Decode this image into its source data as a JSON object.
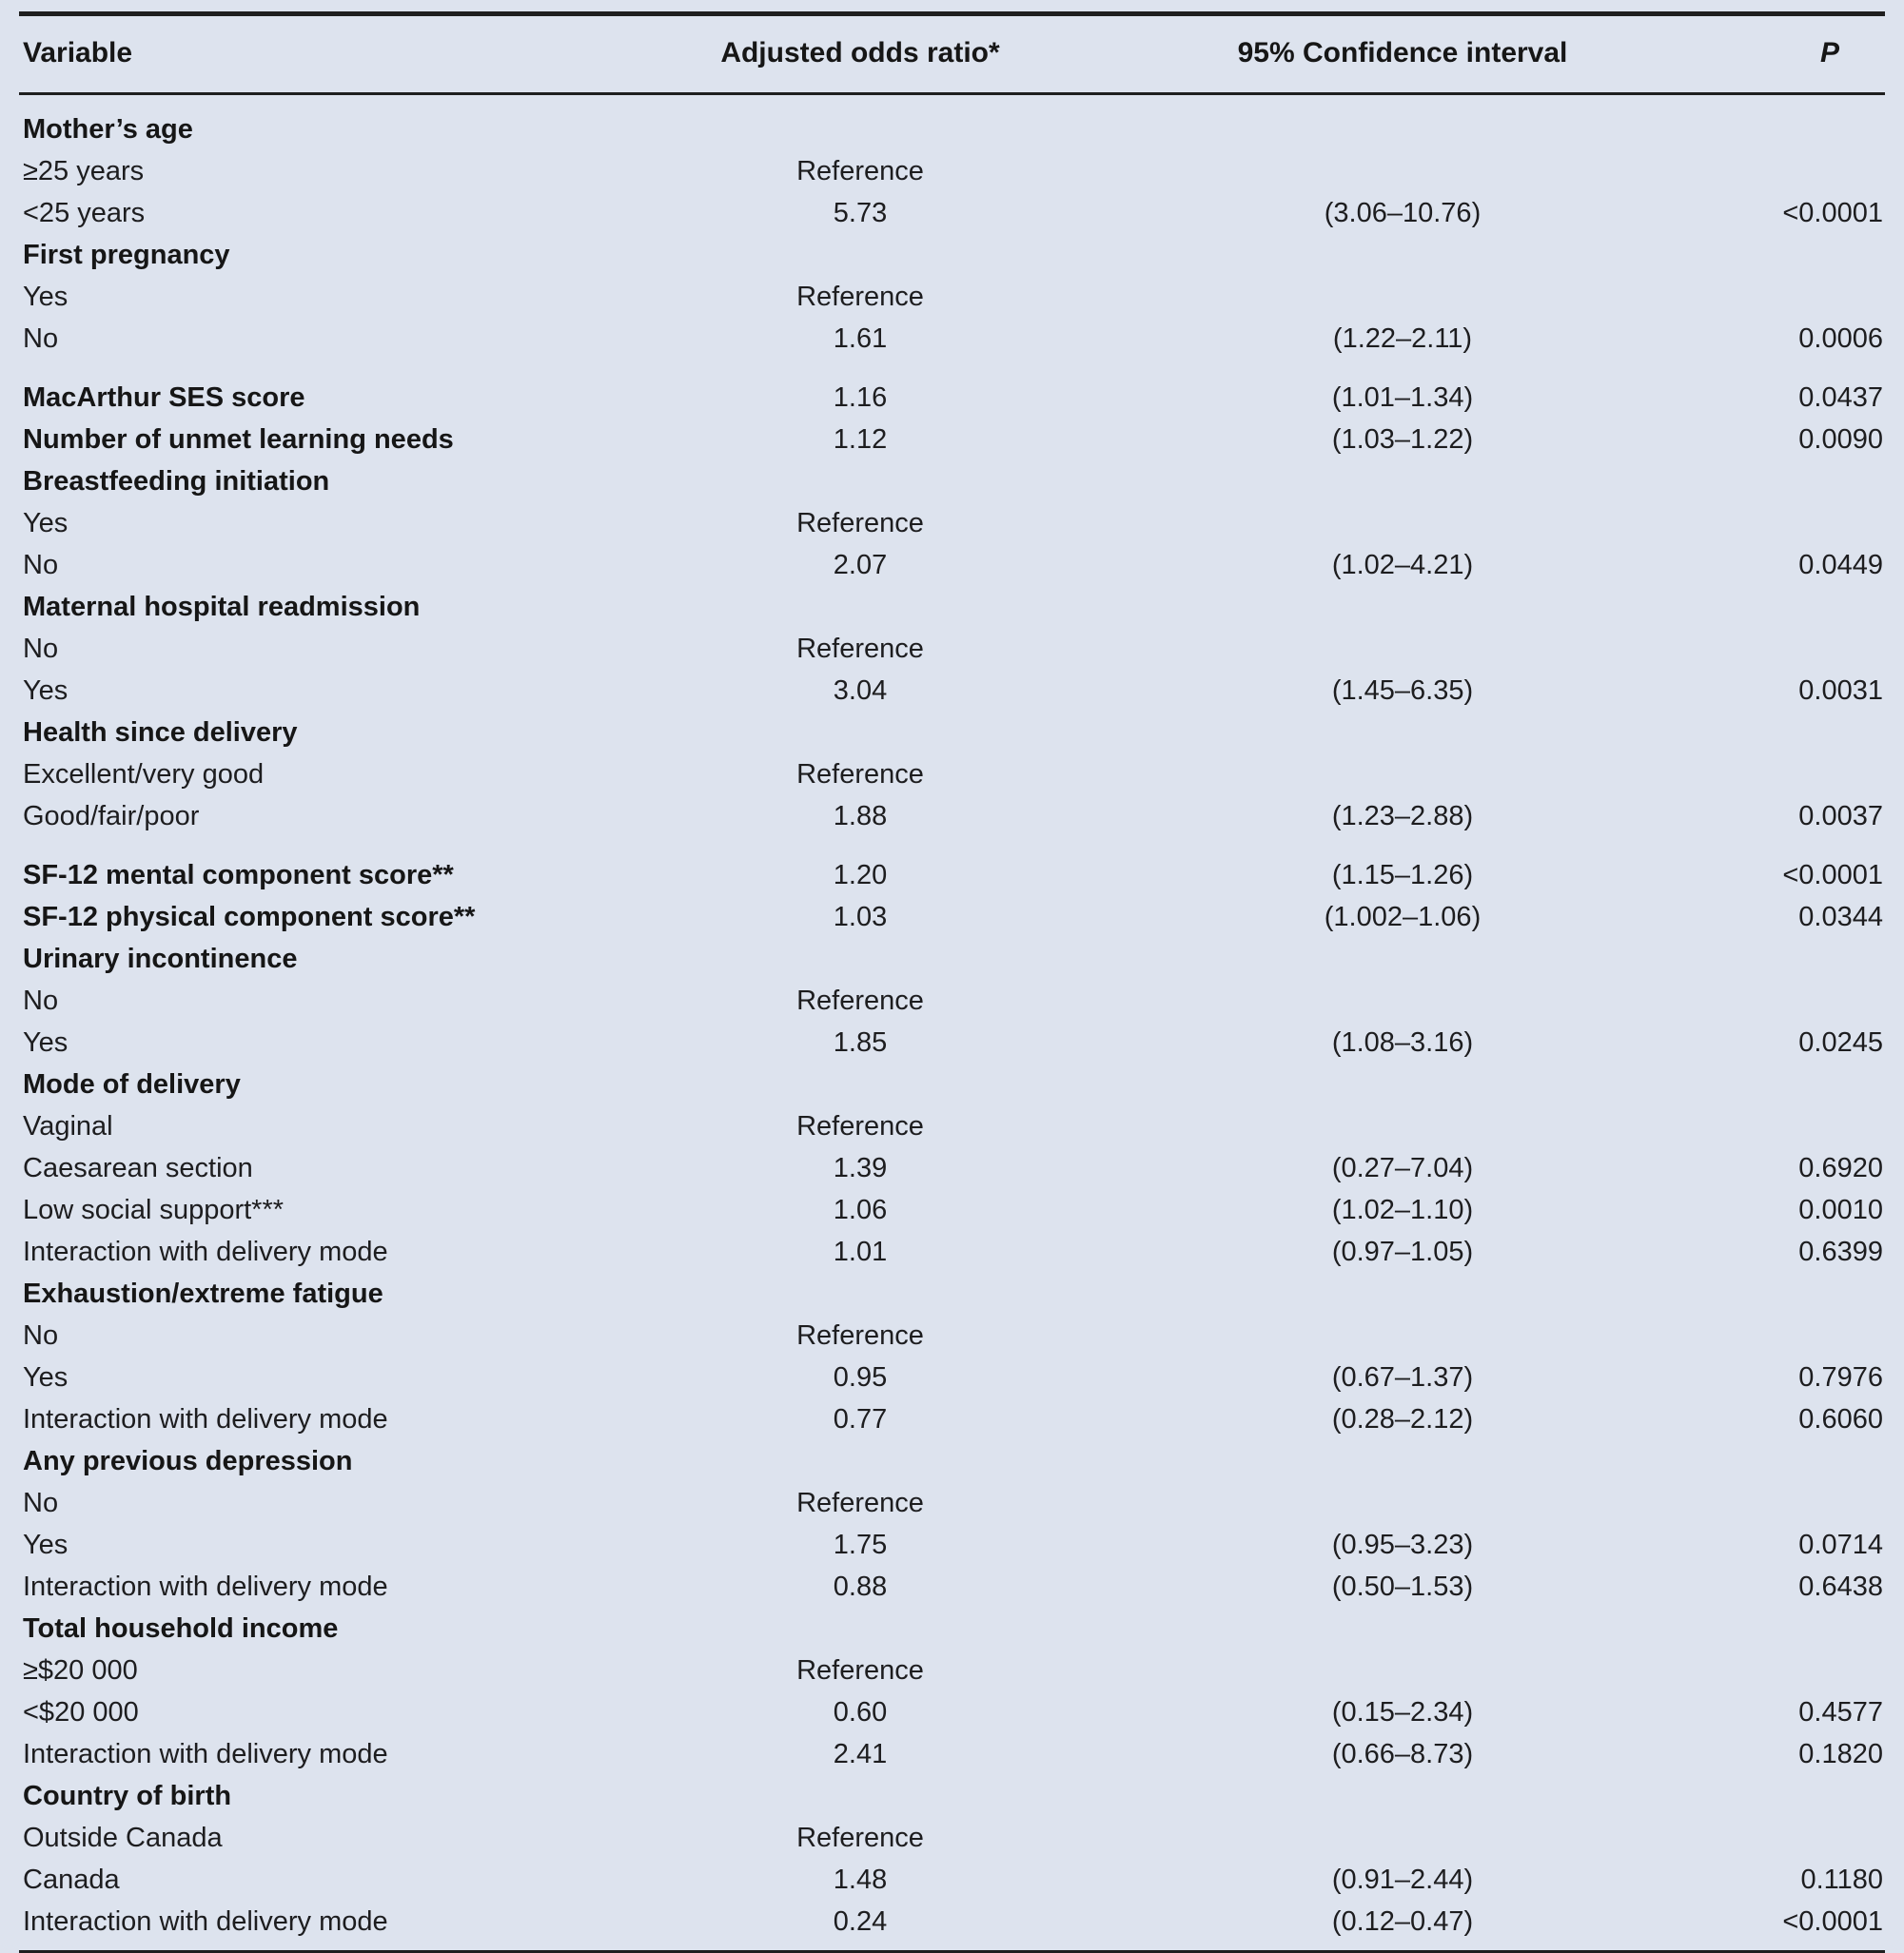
{
  "table": {
    "columns": [
      "Variable",
      "Adjusted odds ratio*",
      "95% Confidence interval",
      "P"
    ],
    "rows": [
      {
        "v": "Mother’s age",
        "bold": true,
        "or": "",
        "ci": "",
        "p": ""
      },
      {
        "v": "≥25 years",
        "bold": false,
        "or": "Reference",
        "ci": "",
        "p": ""
      },
      {
        "v": "<25 years",
        "bold": false,
        "or": "5.73",
        "ci": "(3.06–10.76)",
        "p": "<0.0001"
      },
      {
        "v": "First pregnancy",
        "bold": true,
        "or": "",
        "ci": "",
        "p": ""
      },
      {
        "v": "Yes",
        "bold": false,
        "or": "Reference",
        "ci": "",
        "p": ""
      },
      {
        "v": "No",
        "bold": false,
        "or": "1.61",
        "ci": "(1.22–2.11)",
        "p": "0.0006"
      },
      {
        "v": "MacArthur SES score",
        "bold": true,
        "gap": true,
        "or": "1.16",
        "ci": "(1.01–1.34)",
        "p": "0.0437"
      },
      {
        "v": "Number of unmet learning needs",
        "bold": true,
        "or": "1.12",
        "ci": "(1.03–1.22)",
        "p": "0.0090"
      },
      {
        "v": "Breastfeeding initiation",
        "bold": true,
        "or": "",
        "ci": "",
        "p": ""
      },
      {
        "v": "Yes",
        "bold": false,
        "or": "Reference",
        "ci": "",
        "p": ""
      },
      {
        "v": "No",
        "bold": false,
        "or": "2.07",
        "ci": "(1.02–4.21)",
        "p": "0.0449"
      },
      {
        "v": "Maternal hospital readmission",
        "bold": true,
        "or": "",
        "ci": "",
        "p": ""
      },
      {
        "v": "No",
        "bold": false,
        "or": "Reference",
        "ci": "",
        "p": ""
      },
      {
        "v": "Yes",
        "bold": false,
        "or": "3.04",
        "ci": "(1.45–6.35)",
        "p": "0.0031"
      },
      {
        "v": "Health since delivery",
        "bold": true,
        "or": "",
        "ci": "",
        "p": ""
      },
      {
        "v": "Excellent/very good",
        "bold": false,
        "or": "Reference",
        "ci": "",
        "p": ""
      },
      {
        "v": "Good/fair/poor",
        "bold": false,
        "or": "1.88",
        "ci": "(1.23–2.88)",
        "p": "0.0037"
      },
      {
        "v": "SF-12 mental component score**",
        "bold": true,
        "gap": true,
        "or": "1.20",
        "ci": "(1.15–1.26)",
        "p": "<0.0001"
      },
      {
        "v": "SF-12 physical component score**",
        "bold": true,
        "or": "1.03",
        "ci": "(1.002–1.06)",
        "p": "0.0344"
      },
      {
        "v": "Urinary incontinence",
        "bold": true,
        "or": "",
        "ci": "",
        "p": ""
      },
      {
        "v": "No",
        "bold": false,
        "or": "Reference",
        "ci": "",
        "p": ""
      },
      {
        "v": "Yes",
        "bold": false,
        "or": "1.85",
        "ci": "(1.08–3.16)",
        "p": "0.0245"
      },
      {
        "v": "Mode of delivery",
        "bold": true,
        "or": "",
        "ci": "",
        "p": ""
      },
      {
        "v": "Vaginal",
        "bold": false,
        "or": "Reference",
        "ci": "",
        "p": ""
      },
      {
        "v": "Caesarean section",
        "bold": false,
        "or": "1.39",
        "ci": "(0.27–7.04)",
        "p": "0.6920"
      },
      {
        "v": "Low social support***",
        "bold": false,
        "or": "1.06",
        "ci": "(1.02–1.10)",
        "p": "0.0010"
      },
      {
        "v": "Interaction with delivery mode",
        "bold": false,
        "or": "1.01",
        "ci": "(0.97–1.05)",
        "p": "0.6399"
      },
      {
        "v": "Exhaustion/extreme fatigue",
        "bold": true,
        "or": "",
        "ci": "",
        "p": ""
      },
      {
        "v": "No",
        "bold": false,
        "or": "Reference",
        "ci": "",
        "p": ""
      },
      {
        "v": "Yes",
        "bold": false,
        "or": "0.95",
        "ci": "(0.67–1.37)",
        "p": "0.7976"
      },
      {
        "v": "Interaction with delivery mode",
        "bold": false,
        "or": "0.77",
        "ci": "(0.28–2.12)",
        "p": "0.6060"
      },
      {
        "v": "Any previous depression",
        "bold": true,
        "or": "",
        "ci": "",
        "p": ""
      },
      {
        "v": "No",
        "bold": false,
        "or": "Reference",
        "ci": "",
        "p": ""
      },
      {
        "v": "Yes",
        "bold": false,
        "or": "1.75",
        "ci": "(0.95–3.23)",
        "p": "0.0714"
      },
      {
        "v": "Interaction with delivery mode",
        "bold": false,
        "or": "0.88",
        "ci": "(0.50–1.53)",
        "p": "0.6438"
      },
      {
        "v": "Total household income",
        "bold": true,
        "or": "",
        "ci": "",
        "p": ""
      },
      {
        "v": "≥$20 000",
        "bold": false,
        "or": "Reference",
        "ci": "",
        "p": ""
      },
      {
        "v": "<$20 000",
        "bold": false,
        "or": "0.60",
        "ci": "(0.15–2.34)",
        "p": "0.4577"
      },
      {
        "v": "Interaction with delivery mode",
        "bold": false,
        "or": "2.41",
        "ci": "(0.66–8.73)",
        "p": "0.1820"
      },
      {
        "v": "Country of birth",
        "bold": true,
        "or": "",
        "ci": "",
        "p": ""
      },
      {
        "v": "Outside Canada",
        "bold": false,
        "or": "Reference",
        "ci": "",
        "p": ""
      },
      {
        "v": "Canada",
        "bold": false,
        "or": "1.48",
        "ci": "(0.91–2.44)",
        "p": "0.1180"
      },
      {
        "v": "Interaction with delivery mode",
        "bold": false,
        "or": "0.24",
        "ci": "(0.12–0.47)",
        "p": "<0.0001"
      }
    ]
  }
}
